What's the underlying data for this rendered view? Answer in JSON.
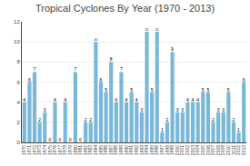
{
  "chart_data": {
    "type": "bar",
    "title": "Tropical Cyclones By Year (1970 - 2013)",
    "categories": [
      "1970",
      "1971",
      "1972",
      "1973",
      "1974",
      "1975",
      "1976",
      "1977",
      "1978",
      "1979",
      "1980",
      "1981",
      "1982",
      "1983",
      "1984",
      "1985",
      "1986",
      "1987",
      "1988",
      "1989",
      "1990",
      "1991",
      "1992",
      "1993",
      "1994",
      "1995",
      "1996",
      "1997",
      "1998",
      "1999",
      "2000",
      "2001",
      "2002",
      "2003",
      "2004",
      "2005",
      "2006",
      "2007",
      "2008",
      "2009",
      "2010",
      "2011",
      "2012",
      "2013"
    ],
    "values": [
      4,
      6,
      7,
      2,
      3,
      0,
      4,
      0,
      4,
      0,
      7,
      0,
      2,
      2,
      10,
      6,
      5,
      8,
      4,
      7,
      4,
      5,
      4,
      3,
      11,
      5,
      11,
      1,
      2,
      9,
      3,
      3,
      4,
      4,
      4,
      5,
      5,
      2,
      3,
      3,
      5,
      2,
      1,
      6
    ],
    "color": "#7ab8d9",
    "ylim": [
      0,
      12
    ],
    "yticks": [
      0,
      2,
      4,
      6,
      8,
      10,
      12
    ],
    "grid": true,
    "data_labels": true
  }
}
